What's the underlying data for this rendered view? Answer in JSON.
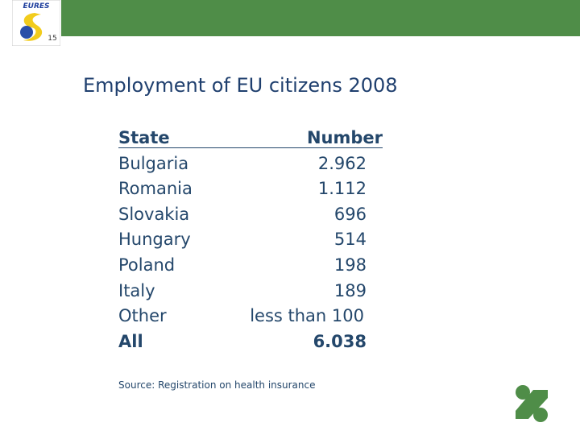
{
  "logo": {
    "text": "EURES",
    "badge": "15"
  },
  "title": "Employment of EU citizens 2008",
  "table": {
    "header": [
      "State",
      "Number"
    ],
    "rows": [
      [
        "Bulgaria",
        "2.962"
      ],
      [
        "Romania",
        "1.112"
      ],
      [
        "Slovakia",
        "696"
      ],
      [
        "Hungary",
        "514"
      ],
      [
        "Poland",
        "198"
      ],
      [
        "Italy",
        "189"
      ],
      [
        "Other",
        "less than 100"
      ]
    ],
    "total": [
      "All",
      "6.038"
    ]
  },
  "source": "Source: Registration on health insurance"
}
